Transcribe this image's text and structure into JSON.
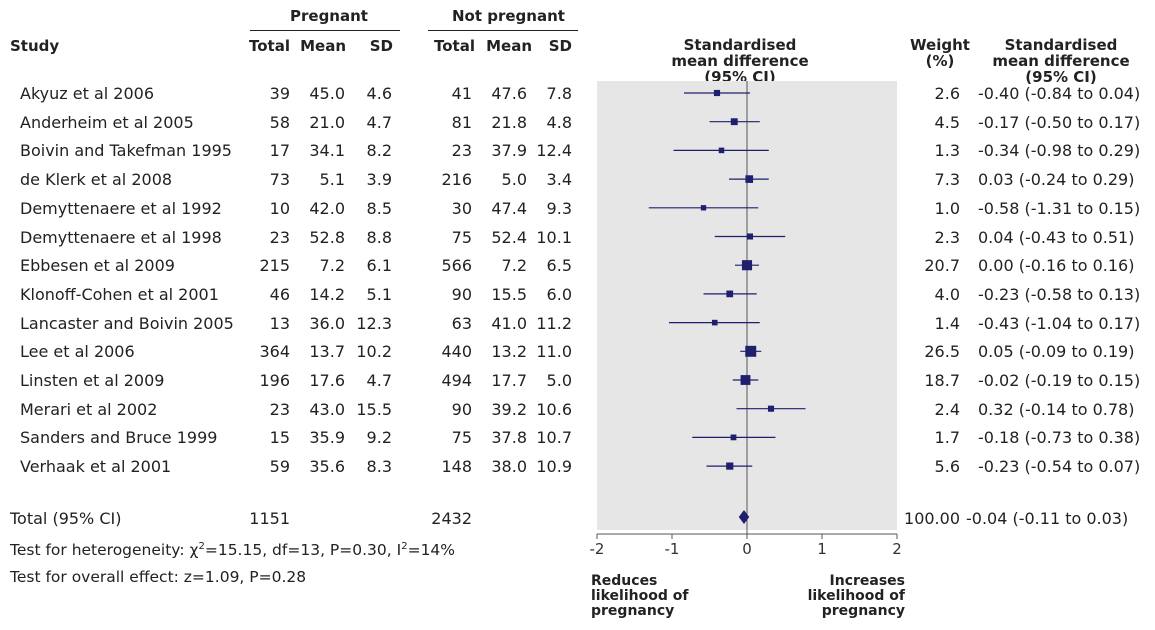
{
  "headers": {
    "group1": "Pregnant",
    "group2": "Not pregnant",
    "study": "Study",
    "total": "Total",
    "mean": "Mean",
    "sd": "SD",
    "smd": "Standardised mean difference (95% CI)",
    "weight": "Weight (%)",
    "smd_text": "Standardised mean difference (95% CI)"
  },
  "studies": [
    {
      "name": "Akyuz et al 2006",
      "t1": "39",
      "m1": "45.0",
      "sd1": "4.6",
      "t2": "41",
      "m2": "47.6",
      "sd2": "7.8",
      "weight": "2.6",
      "ci_text": "-0.40 (-0.84 to 0.04)"
    },
    {
      "name": "Anderheim et al 2005",
      "t1": "58",
      "m1": "21.0",
      "sd1": "4.7",
      "t2": "81",
      "m2": "21.8",
      "sd2": "4.8",
      "weight": "4.5",
      "ci_text": "-0.17 (-0.50 to 0.17)"
    },
    {
      "name": "Boivin and Takefman 1995",
      "t1": "17",
      "m1": "34.1",
      "sd1": "8.2",
      "t2": "23",
      "m2": "37.9",
      "sd2": "12.4",
      "weight": "1.3",
      "ci_text": "-0.34 (-0.98 to 0.29)"
    },
    {
      "name": "de Klerk et al 2008",
      "t1": "73",
      "m1": "5.1",
      "sd1": "3.9",
      "t2": "216",
      "m2": "5.0",
      "sd2": "3.4",
      "weight": "7.3",
      "ci_text": "0.03 (-0.24 to 0.29)"
    },
    {
      "name": "Demyttenaere et al 1992",
      "t1": "10",
      "m1": "42.0",
      "sd1": "8.5",
      "t2": "30",
      "m2": "47.4",
      "sd2": "9.3",
      "weight": "1.0",
      "ci_text": "-0.58 (-1.31 to 0.15)"
    },
    {
      "name": "Demyttenaere et al 1998",
      "t1": "23",
      "m1": "52.8",
      "sd1": "8.8",
      "t2": "75",
      "m2": "52.4",
      "sd2": "10.1",
      "weight": "2.3",
      "ci_text": "0.04 (-0.43 to 0.51)"
    },
    {
      "name": "Ebbesen et al 2009",
      "t1": "215",
      "m1": "7.2",
      "sd1": "6.1",
      "t2": "566",
      "m2": "7.2",
      "sd2": "6.5",
      "weight": "20.7",
      "ci_text": "0.00 (-0.16 to 0.16)"
    },
    {
      "name": "Klonoff-Cohen et al 2001",
      "t1": "46",
      "m1": "14.2",
      "sd1": "5.1",
      "t2": "90",
      "m2": "15.5",
      "sd2": "6.0",
      "weight": "4.0",
      "ci_text": "-0.23 (-0.58 to 0.13)"
    },
    {
      "name": "Lancaster and Boivin 2005",
      "t1": "13",
      "m1": "36.0",
      "sd1": "12.3",
      "t2": "63",
      "m2": "41.0",
      "sd2": "11.2",
      "weight": "1.4",
      "ci_text": "-0.43 (-1.04 to 0.17)"
    },
    {
      "name": "Lee et al 2006",
      "t1": "364",
      "m1": "13.7",
      "sd1": "10.2",
      "t2": "440",
      "m2": "13.2",
      "sd2": "11.0",
      "weight": "26.5",
      "ci_text": "0.05 (-0.09 to 0.19)"
    },
    {
      "name": "Linsten et al 2009",
      "t1": "196",
      "m1": "17.6",
      "sd1": "4.7",
      "t2": "494",
      "m2": "17.7",
      "sd2": "5.0",
      "weight": "18.7",
      "ci_text": "-0.02 (-0.19 to 0.15)"
    },
    {
      "name": "Merari et al 2002",
      "t1": "23",
      "m1": "43.0",
      "sd1": "15.5",
      "t2": "90",
      "m2": "39.2",
      "sd2": "10.6",
      "weight": "2.4",
      "ci_text": "0.32 (-0.14 to 0.78)"
    },
    {
      "name": "Sanders and Bruce 1999",
      "t1": "15",
      "m1": "35.9",
      "sd1": "9.2",
      "t2": "75",
      "m2": "37.8",
      "sd2": "10.7",
      "weight": "1.7",
      "ci_text": "-0.18 (-0.73 to 0.38)"
    },
    {
      "name": "Verhaak et al 2001",
      "t1": "59",
      "m1": "35.6",
      "sd1": "8.3",
      "t2": "148",
      "m2": "38.0",
      "sd2": "10.9",
      "weight": "5.6",
      "ci_text": "-0.23 (-0.54 to 0.07)"
    }
  ],
  "total": {
    "name": "Total (95% CI)",
    "t1": "1151",
    "t2": "2432",
    "weight": "100.00",
    "ci_text": "-0.04 (-0.11 to 0.03)"
  },
  "footnotes": {
    "heterogeneity_prefix": "Test for heterogeneity: ",
    "chi": "χ",
    "chi_sup": "2",
    "heterogeneity_mid": "=15.15, df=13, P=0.30, I",
    "i_sup": "2",
    "heterogeneity_end": "=14%",
    "overall": "Test for overall effect: z=1.09, P=0.28"
  },
  "direction": {
    "left": [
      "Reduces",
      "likelihood of",
      "pregnancy"
    ],
    "right": [
      "Increases",
      "likelihood of",
      "pregnancy"
    ]
  },
  "colors": {
    "marker": "#1f1f6e",
    "panel": "#e6e6e6",
    "axis": "#555555"
  },
  "chart_data": {
    "type": "scatter",
    "subtype": "forest",
    "xlim": [
      -2,
      2
    ],
    "xticks": [
      -2,
      -1,
      0,
      1,
      2
    ],
    "reference_line": 0,
    "points": [
      {
        "study": "Akyuz et al 2006",
        "est": -0.4,
        "lo": -0.84,
        "hi": 0.04,
        "weight": 2.6
      },
      {
        "study": "Anderheim et al 2005",
        "est": -0.17,
        "lo": -0.5,
        "hi": 0.17,
        "weight": 4.5
      },
      {
        "study": "Boivin and Takefman 1995",
        "est": -0.34,
        "lo": -0.98,
        "hi": 0.29,
        "weight": 1.3
      },
      {
        "study": "de Klerk et al 2008",
        "est": 0.03,
        "lo": -0.24,
        "hi": 0.29,
        "weight": 7.3
      },
      {
        "study": "Demyttenaere et al 1992",
        "est": -0.58,
        "lo": -1.31,
        "hi": 0.15,
        "weight": 1.0
      },
      {
        "study": "Demyttenaere et al 1998",
        "est": 0.04,
        "lo": -0.43,
        "hi": 0.51,
        "weight": 2.3
      },
      {
        "study": "Ebbesen et al 2009",
        "est": 0.0,
        "lo": -0.16,
        "hi": 0.16,
        "weight": 20.7
      },
      {
        "study": "Klonoff-Cohen et al 2001",
        "est": -0.23,
        "lo": -0.58,
        "hi": 0.13,
        "weight": 4.0
      },
      {
        "study": "Lancaster and Boivin 2005",
        "est": -0.43,
        "lo": -1.04,
        "hi": 0.17,
        "weight": 1.4
      },
      {
        "study": "Lee et al 2006",
        "est": 0.05,
        "lo": -0.09,
        "hi": 0.19,
        "weight": 26.5
      },
      {
        "study": "Linsten et al 2009",
        "est": -0.02,
        "lo": -0.19,
        "hi": 0.15,
        "weight": 18.7
      },
      {
        "study": "Merari et al 2002",
        "est": 0.32,
        "lo": -0.14,
        "hi": 0.78,
        "weight": 2.4
      },
      {
        "study": "Sanders and Bruce 1999",
        "est": -0.18,
        "lo": -0.73,
        "hi": 0.38,
        "weight": 1.7
      },
      {
        "study": "Verhaak et al 2001",
        "est": -0.23,
        "lo": -0.54,
        "hi": 0.07,
        "weight": 5.6
      }
    ],
    "summary": {
      "est": -0.04,
      "lo": -0.11,
      "hi": 0.03
    }
  }
}
